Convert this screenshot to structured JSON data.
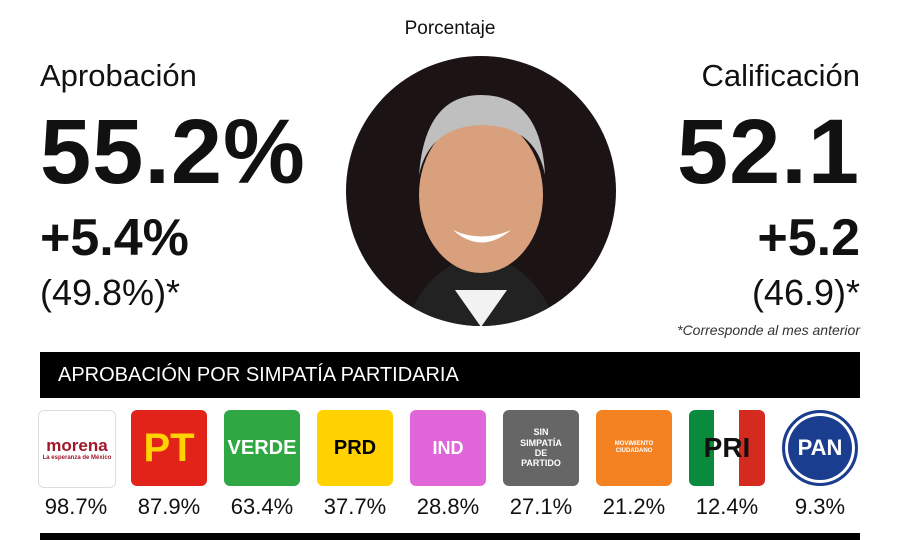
{
  "header": {
    "title": "Porcentaje"
  },
  "approval": {
    "label": "Aprobación",
    "value": "55.2%",
    "change": "+5.4%",
    "previous": "(49.8%)*"
  },
  "rating": {
    "label": "Calificación",
    "value": "52.1",
    "change": "+5.2",
    "previous": "(46.9)*"
  },
  "note": "*Corresponde al mes anterior",
  "section": {
    "title": "APROBACIÓN POR SIMPATÍA PARTIDARIA",
    "parties": [
      {
        "logo": [
          "morena",
          "La esperanza de México"
        ],
        "value": "98.7%"
      },
      {
        "logo": [
          "PT"
        ],
        "value": "87.9%"
      },
      {
        "logo": [
          "VERDE"
        ],
        "value": "63.4%"
      },
      {
        "logo": [
          "PRD"
        ],
        "value": "37.7%"
      },
      {
        "logo": [
          "IND"
        ],
        "value": "28.8%"
      },
      {
        "logo": [
          "SIN",
          "SIMPATÍA",
          "DE",
          "PARTIDO"
        ],
        "value": "27.1%"
      },
      {
        "logo": [
          "MOVIMIENTO CIUDADANO"
        ],
        "value": "21.2%"
      },
      {
        "logo": [
          "PRI"
        ],
        "value": "12.4%"
      },
      {
        "logo": [
          "PAN"
        ],
        "value": "9.3%"
      }
    ]
  }
}
